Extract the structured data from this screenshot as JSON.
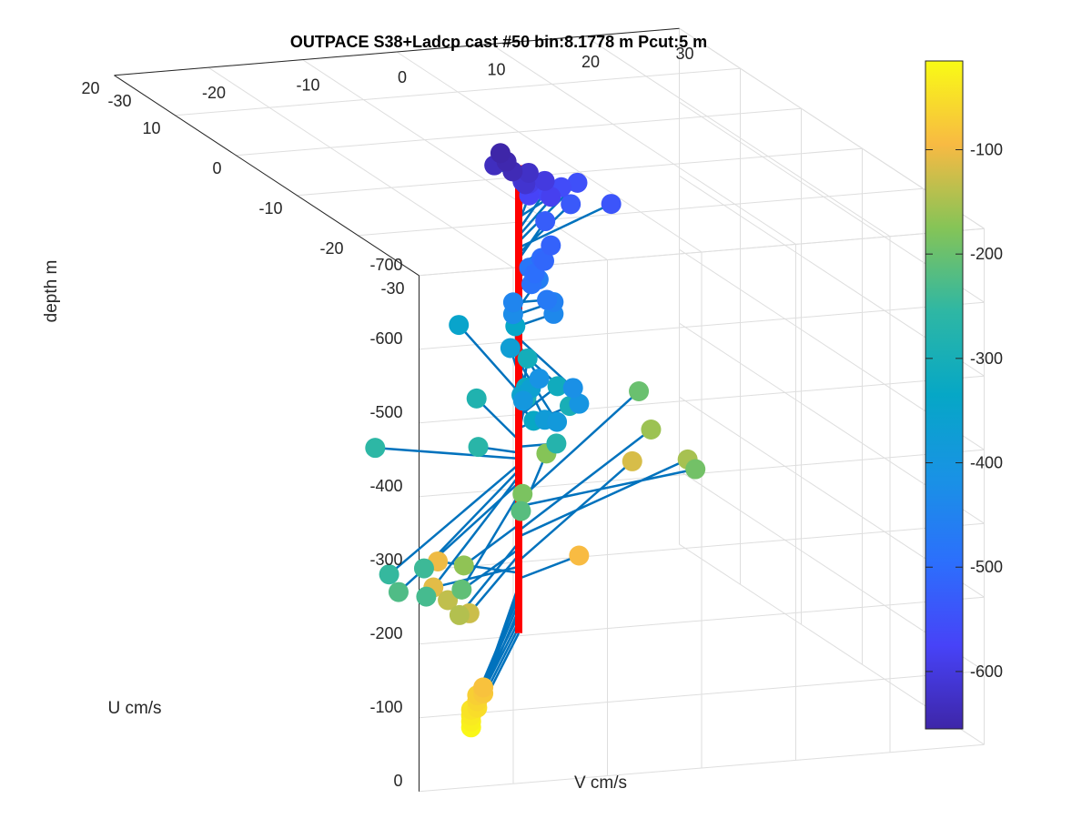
{
  "chart_data": {
    "type": "scatter",
    "plot_kind": "3D ADCP velocity profile (stem plot with colored markers)",
    "title": "OUTPACE S38+Ladcp cast #50 bin:8.1778 m  Pcut:5 m",
    "xlabel": "U cm/s",
    "ylabel": "V cm/s",
    "zlabel": "depth m",
    "xlim": [
      -30,
      20
    ],
    "ylim": [
      -30,
      30
    ],
    "zlim": [
      -700,
      0
    ],
    "x_ticks": [
      "-30",
      "-20",
      "-10",
      "0",
      "10",
      "20"
    ],
    "y_ticks": [
      "-30",
      "-20",
      "-10",
      "0",
      "10",
      "20",
      "30"
    ],
    "z_ticks": [
      "0",
      "-100",
      "-200",
      "-300",
      "-400",
      "-500",
      "-600",
      "-700"
    ],
    "grid": true,
    "colormap": "parula",
    "colorbar": {
      "range": [
        -655,
        -15
      ],
      "ticks": [
        "-100",
        "-200",
        "-300",
        "-400",
        "-500",
        "-600"
      ]
    },
    "profile_line_color": "#ff0000",
    "stem_color": "#0072bd",
    "points": [
      {
        "depth": -20,
        "u": -20,
        "v": -18
      },
      {
        "depth": -28,
        "u": -20,
        "v": -18
      },
      {
        "depth": -36,
        "u": -20,
        "v": -18
      },
      {
        "depth": -44,
        "u": -20,
        "v": -18
      },
      {
        "depth": -52,
        "u": -21,
        "v": -18
      },
      {
        "depth": -61,
        "u": -21,
        "v": -18
      },
      {
        "depth": -69,
        "u": -21,
        "v": -18
      },
      {
        "depth": -77,
        "u": -22,
        "v": -18
      },
      {
        "depth": -85,
        "u": -22,
        "v": -18
      },
      {
        "depth": -94,
        "u": 4,
        "v": 9
      },
      {
        "depth": -102,
        "u": 4,
        "v": -6
      },
      {
        "depth": -110,
        "u": -3,
        "v": -11
      },
      {
        "depth": -118,
        "u": 20,
        "v": 25
      },
      {
        "depth": -126,
        "u": -12,
        "v": -13
      },
      {
        "depth": -134,
        "u": -10,
        "v": -14
      },
      {
        "depth": -143,
        "u": -15,
        "v": -16
      },
      {
        "depth": -151,
        "u": 14,
        "v": 27
      },
      {
        "depth": -159,
        "u": 20,
        "v": 27
      },
      {
        "depth": -167,
        "u": -8,
        "v": -11
      },
      {
        "depth": -175,
        "u": 14,
        "v": 12
      },
      {
        "depth": -184,
        "u": 4,
        "v": 3
      },
      {
        "depth": -192,
        "u": 5,
        "v": 22
      },
      {
        "depth": -200,
        "u": 22,
        "v": 27
      },
      {
        "depth": -208,
        "u": -20,
        "v": -19
      },
      {
        "depth": -216,
        "u": -5,
        "v": -3
      },
      {
        "depth": -224,
        "u": -22,
        "v": -27
      },
      {
        "depth": -233,
        "u": -25,
        "v": -26
      },
      {
        "depth": -241,
        "u": -20,
        "v": -23
      },
      {
        "depth": -249,
        "u": -22,
        "v": -28
      },
      {
        "depth": -257,
        "u": 5,
        "v": -12
      },
      {
        "depth": -265,
        "u": 2,
        "v": -3
      },
      {
        "depth": -273,
        "u": 0,
        "v": 4
      },
      {
        "depth": -282,
        "u": 10,
        "v": 2
      },
      {
        "depth": -290,
        "u": 8,
        "v": 6
      },
      {
        "depth": -298,
        "u": 4,
        "v": 8
      },
      {
        "depth": -306,
        "u": 14,
        "v": 10
      },
      {
        "depth": -314,
        "u": 6,
        "v": 8
      },
      {
        "depth": -322,
        "u": 5,
        "v": 4
      },
      {
        "depth": -331,
        "u": -4,
        "v": -1
      },
      {
        "depth": -339,
        "u": 16,
        "v": 10
      },
      {
        "depth": -347,
        "u": 16,
        "v": 4
      },
      {
        "depth": -355,
        "u": -2,
        "v": -1
      },
      {
        "depth": -363,
        "u": -2,
        "v": 0
      },
      {
        "depth": -371,
        "u": 6,
        "v": 3
      },
      {
        "depth": -380,
        "u": -12,
        "v": -5
      },
      {
        "depth": -388,
        "u": -14,
        "v": -5
      },
      {
        "depth": -396,
        "u": -10,
        "v": -6
      },
      {
        "depth": -404,
        "u": -13,
        "v": -2
      },
      {
        "depth": -412,
        "u": -8,
        "v": -3
      },
      {
        "depth": -420,
        "u": -12,
        "v": -2
      },
      {
        "depth": -429,
        "u": 4,
        "v": 2
      },
      {
        "depth": -437,
        "u": 2,
        "v": 5
      },
      {
        "depth": -445,
        "u": 4,
        "v": 2
      },
      {
        "depth": -453,
        "u": 2,
        "v": 5
      },
      {
        "depth": -461,
        "u": 6,
        "v": 6
      },
      {
        "depth": -469,
        "u": 0,
        "v": 3
      },
      {
        "depth": -478,
        "u": 6,
        "v": 5
      },
      {
        "depth": -486,
        "u": 1,
        "v": 2
      },
      {
        "depth": -494,
        "u": 2,
        "v": 3
      },
      {
        "depth": -502,
        "u": 4,
        "v": 5
      },
      {
        "depth": -510,
        "u": 2,
        "v": 4
      },
      {
        "depth": -518,
        "u": 4,
        "v": 6
      },
      {
        "depth": -527,
        "u": 8,
        "v": 8
      },
      {
        "depth": -535,
        "u": 10,
        "v": 12
      },
      {
        "depth": -543,
        "u": 8,
        "v": 15
      },
      {
        "depth": -551,
        "u": 12,
        "v": 14
      },
      {
        "depth": -559,
        "u": 10,
        "v": 11
      },
      {
        "depth": -567,
        "u": 8,
        "v": 8
      },
      {
        "depth": -576,
        "u": 6,
        "v": 5
      },
      {
        "depth": -584,
        "u": 4,
        "v": 6
      },
      {
        "depth": -592,
        "u": 6,
        "v": 5
      },
      {
        "depth": -600,
        "u": 5,
        "v": 6
      },
      {
        "depth": -608,
        "u": 4,
        "v": 3
      },
      {
        "depth": -616,
        "u": 2,
        "v": 2
      },
      {
        "depth": -625,
        "u": 3,
        "v": 3
      },
      {
        "depth": -633,
        "u": 4,
        "v": 0
      },
      {
        "depth": -641,
        "u": 1,
        "v": 0
      },
      {
        "depth": -649,
        "u": 2,
        "v": 0
      },
      {
        "depth": -655,
        "u": 3,
        "v": 0
      }
    ]
  }
}
